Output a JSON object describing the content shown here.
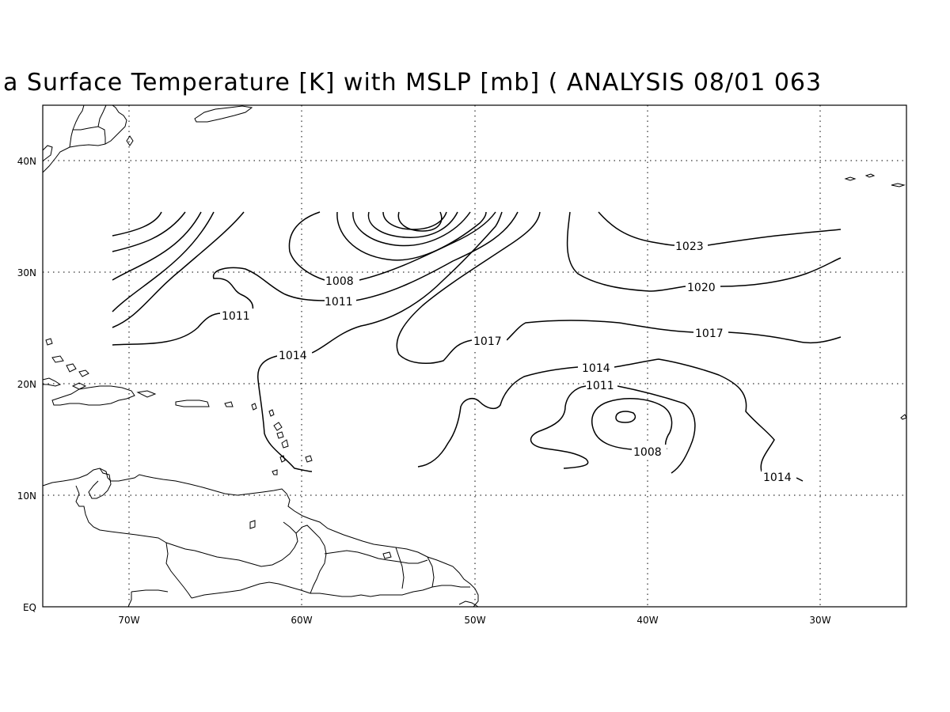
{
  "title": "a Surface Temperature [K] with MSLP [mb] ( ANALYSIS 08/01 063",
  "x_axis": {
    "ticks": [
      "70W",
      "60W",
      "50W",
      "40W",
      "30W"
    ]
  },
  "y_axis": {
    "ticks": [
      "EQ",
      "10N",
      "20N",
      "30N",
      "40N"
    ]
  },
  "grid": true,
  "contour_labels": [
    "1023",
    "1020",
    "1017",
    "1017",
    "1014",
    "1014",
    "1014",
    "1011",
    "1011",
    "1011",
    "1008",
    "1008"
  ],
  "colors": {
    "lines": "#000000",
    "background": "#ffffff"
  }
}
